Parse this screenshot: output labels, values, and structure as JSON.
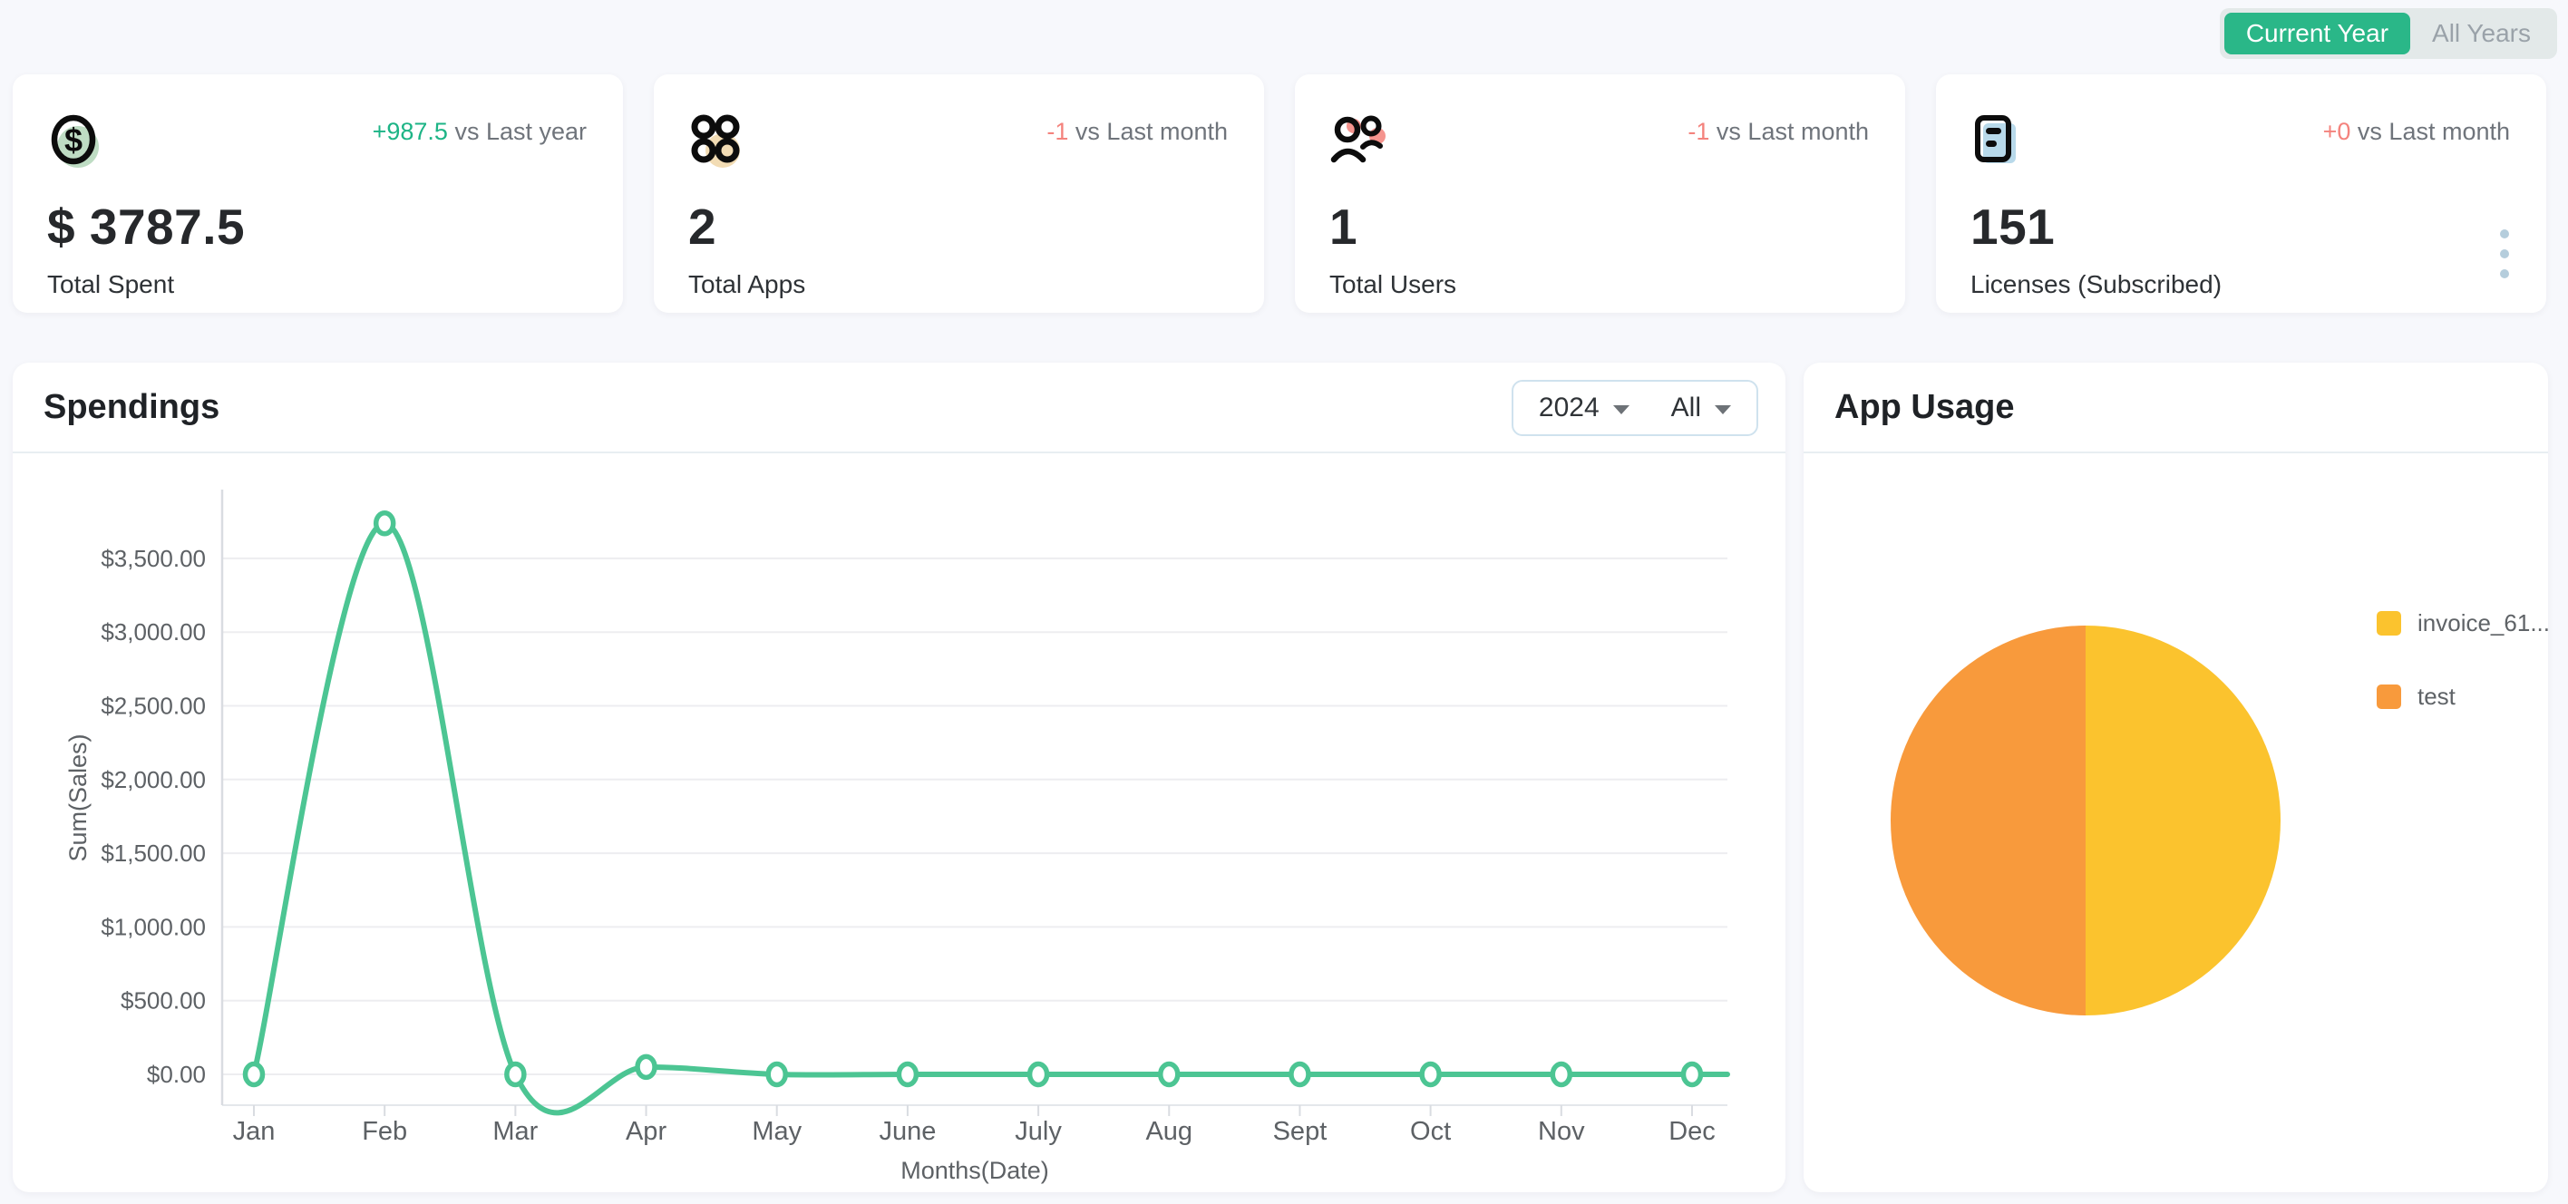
{
  "page": {
    "background": "#f7f8fc"
  },
  "year_toggle": {
    "active_label": "Current Year",
    "inactive_label": "All Years",
    "active_color": "#2ab788"
  },
  "stat_cards": [
    {
      "icon": "dollar-icon",
      "delta": "+987.5",
      "delta_color": "#1db486",
      "compare": "vs Last year",
      "value": "$ 3787.5",
      "label": "Total Spent"
    },
    {
      "icon": "apps-icon",
      "delta": "-1",
      "delta_color": "#f4837d",
      "compare": "vs Last month",
      "value": "2",
      "label": "Total Apps"
    },
    {
      "icon": "users-icon",
      "delta": "-1",
      "delta_color": "#f4837d",
      "compare": "vs Last month",
      "value": "1",
      "label": "Total Users"
    },
    {
      "icon": "license-icon",
      "delta": "+0",
      "delta_color": "#f4837d",
      "compare": "vs Last month",
      "value": "151",
      "label": "Licenses (Subscribed)"
    }
  ],
  "spendings": {
    "title": "Spendings",
    "year_filter": "2024",
    "app_filter": "All",
    "chart_data": {
      "type": "line",
      "x": [
        "Jan",
        "Feb",
        "Mar",
        "Apr",
        "May",
        "June",
        "July",
        "Aug",
        "Sept",
        "Oct",
        "Nov",
        "Dec"
      ],
      "series": [
        {
          "name": "Sum(Sales)",
          "color": "#4cc593",
          "values": [
            0,
            3737.5,
            0,
            50,
            0,
            0,
            0,
            0,
            0,
            0,
            0,
            0
          ]
        }
      ],
      "xlabel": "Months(Date)",
      "ylabel": "Sum(Sales)",
      "yticks": [
        "$0.00",
        "$500.00",
        "$1,000.00",
        "$1,500.00",
        "$2,000.00",
        "$2,500.00",
        "$3,000.00",
        "$3,500.00"
      ],
      "ytick_values": [
        0,
        500,
        1000,
        1500,
        2000,
        2500,
        3000,
        3500
      ],
      "ylim": [
        0,
        3900
      ],
      "grid": true,
      "marker": "circle",
      "smooth": true
    }
  },
  "app_usage": {
    "title": "App Usage",
    "chart_data": {
      "type": "pie",
      "slices": [
        {
          "label": "invoice_61...",
          "value": 50,
          "color": "#fbc32e"
        },
        {
          "label": "test",
          "value": 50,
          "color": "#f89a3c"
        }
      ],
      "legend_position": "right",
      "start_angle_deg": 0,
      "clockwise": true
    }
  },
  "kebab_menu": {
    "color": "#b5cddc"
  }
}
